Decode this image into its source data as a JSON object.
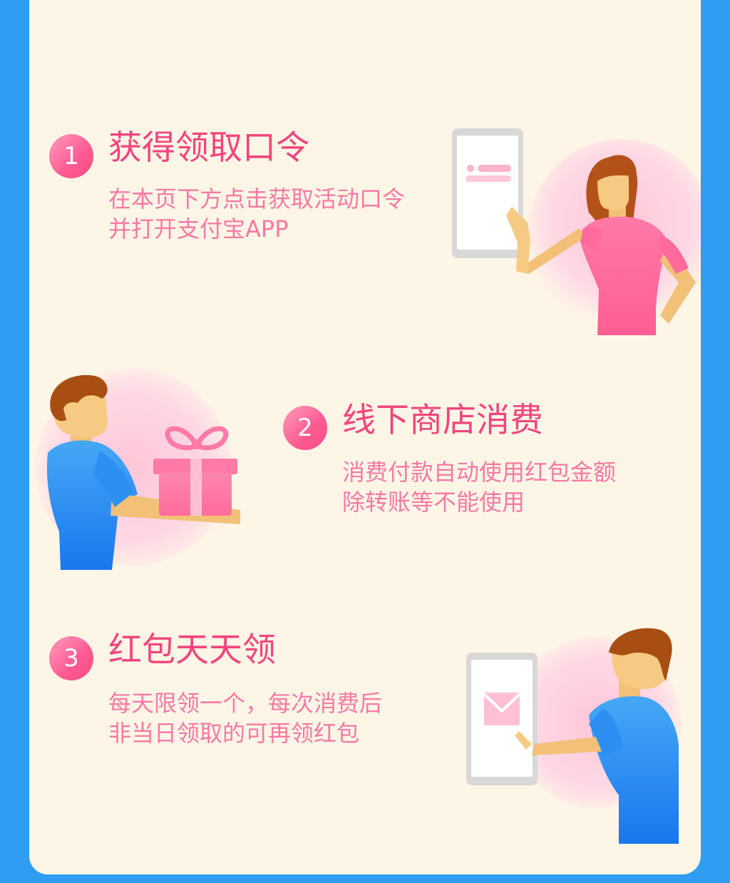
{
  "steps": [
    {
      "number": "1",
      "title": "获得领取口令",
      "desc_line1": "在本页下方点击获取活动口令",
      "desc_line2": "并打开支付宝APP"
    },
    {
      "number": "2",
      "title": "线下商店消费",
      "desc_line1": "消费付款自动使用红包金额",
      "desc_line2": "除转账等不能使用"
    },
    {
      "number": "3",
      "title": "红包天天领",
      "desc_line1": "每天限领一个，每次消费后",
      "desc_line2": "非当日领取的可再领红包"
    }
  ],
  "colors": {
    "background": "#2e9df2",
    "card": "#fdf6e6",
    "title": "#f2457f",
    "desc": "#f779a5",
    "badge": "#ff5a92"
  },
  "icons": [
    "woman-phone-illustration",
    "man-gift-illustration",
    "man-envelope-phone-illustration"
  ]
}
